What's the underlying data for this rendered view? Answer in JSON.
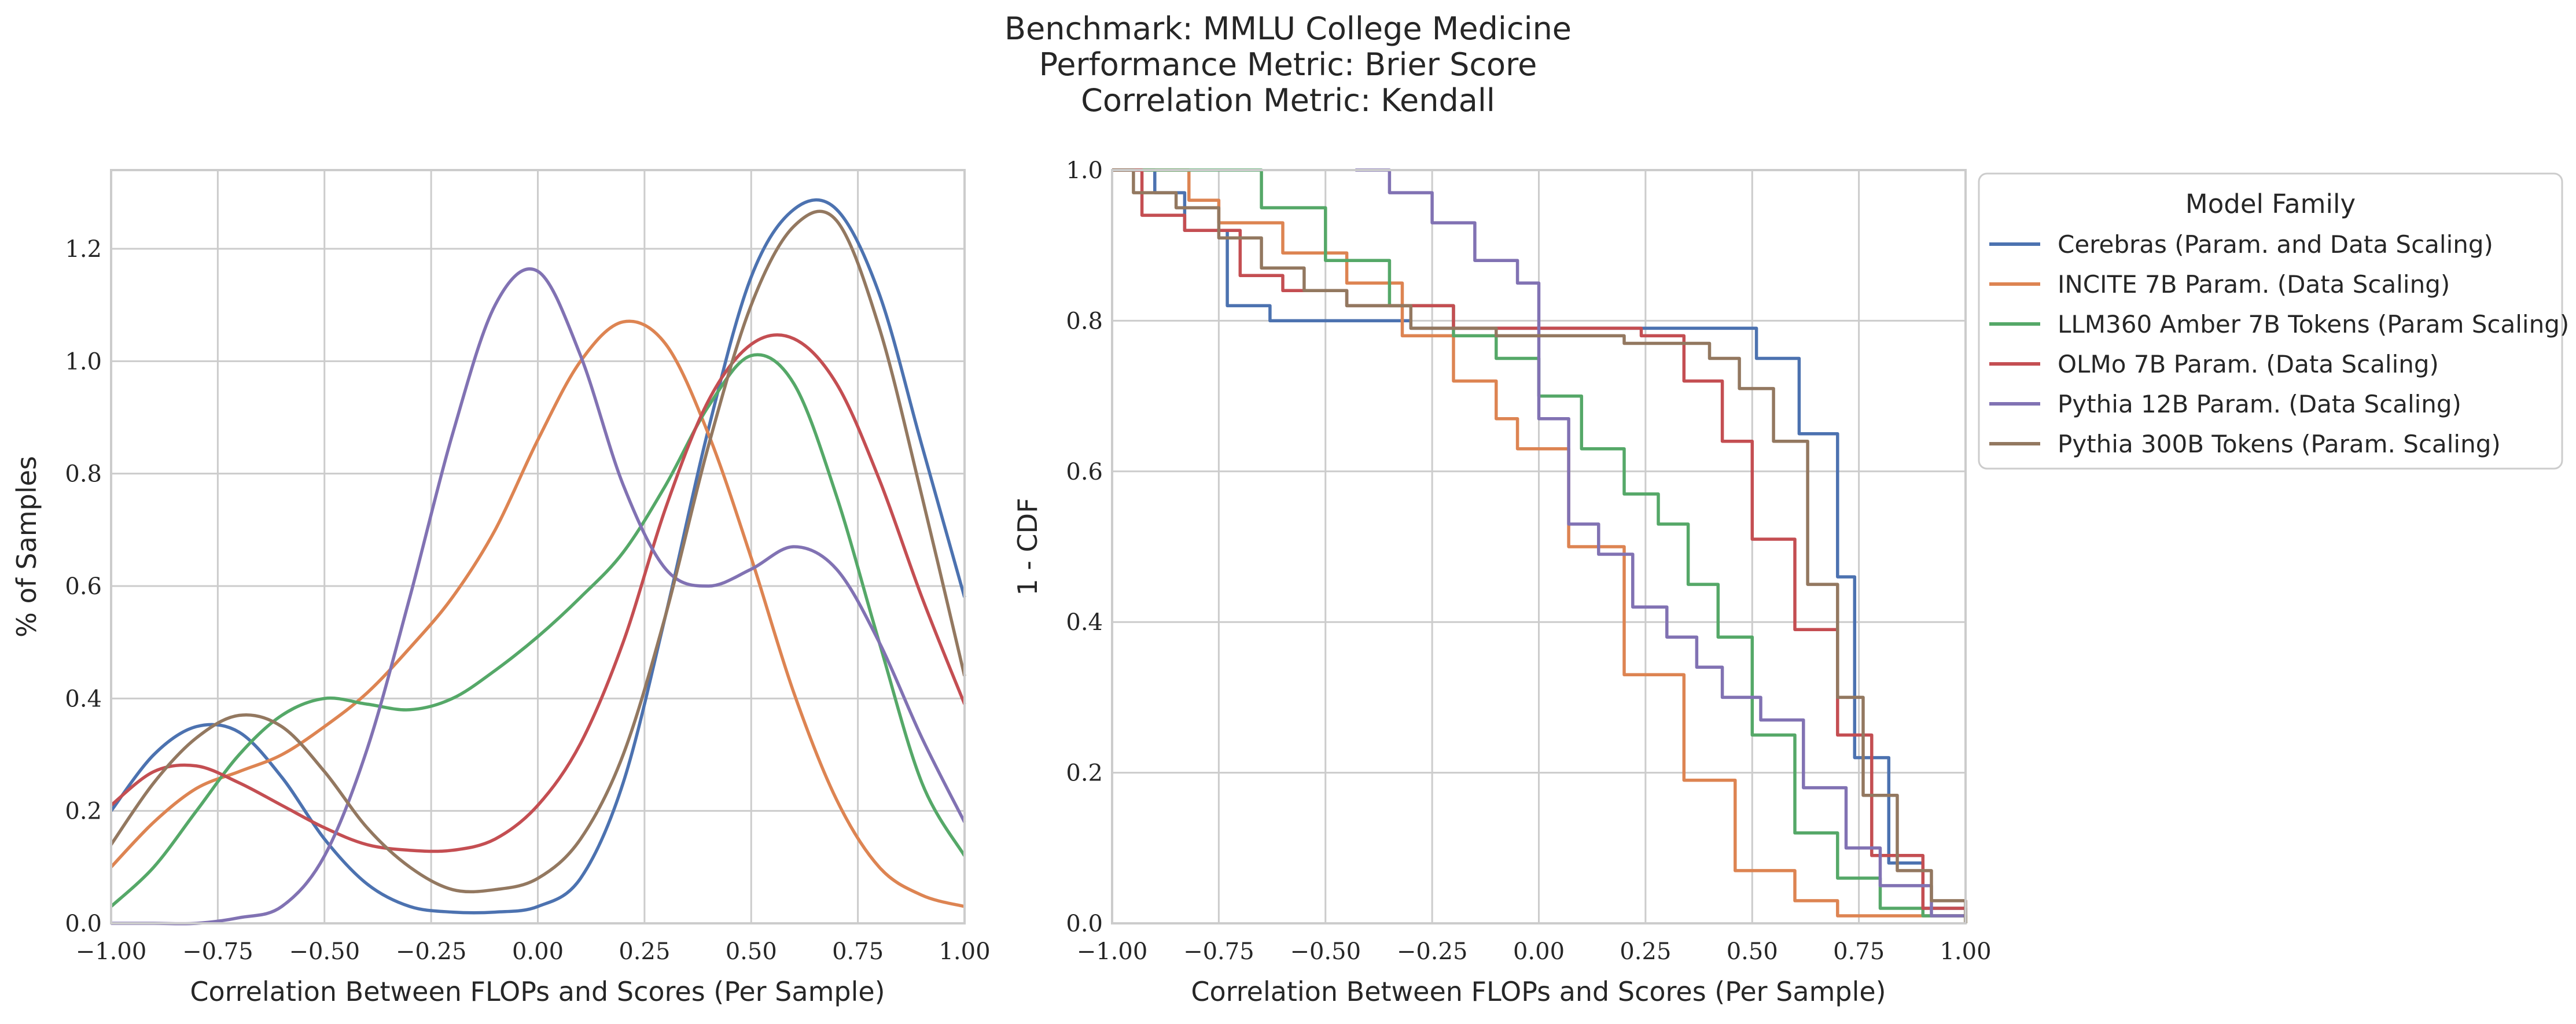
{
  "figure": {
    "title_lines": [
      "Benchmark: MMLU College Medicine",
      "Performance Metric: Brier Score",
      "Correlation Metric: Kendall"
    ]
  },
  "legend": {
    "title": "Model Family",
    "placement": "outside-right-top"
  },
  "colors": {
    "Cerebras (Param. and Data Scaling)": "#4c72b0",
    "INCITE 7B Param. (Data Scaling)": "#dd8452",
    "LLM360 Amber 7B Tokens (Param Scaling)": "#55a868",
    "OLMo 7B Param. (Data Scaling)": "#c44e52",
    "Pythia 12B Param. (Data Scaling)": "#8172b3",
    "Pythia 300B Tokens (Param. Scaling)": "#937860"
  },
  "chart_data": [
    {
      "type": "line",
      "panel": "left",
      "xlabel": "Correlation Between FLOPs and Scores (Per Sample)",
      "ylabel": "% of Samples",
      "xlim": [
        -1.0,
        1.0
      ],
      "ylim": [
        0.0,
        1.34
      ],
      "xticks": [
        -1.0,
        -0.75,
        -0.5,
        -0.25,
        0.0,
        0.25,
        0.5,
        0.75,
        1.0
      ],
      "xtick_labels": [
        "−1.00",
        "−0.75",
        "−0.50",
        "−0.25",
        "0.00",
        "0.25",
        "0.50",
        "0.75",
        "1.00"
      ],
      "yticks": [
        0.0,
        0.2,
        0.4,
        0.6,
        0.8,
        1.0,
        1.2
      ],
      "ytick_labels": [
        "0.0",
        "0.2",
        "0.4",
        "0.6",
        "0.8",
        "1.0",
        "1.2"
      ],
      "grid": true,
      "x": [
        -1.0,
        -0.9,
        -0.8,
        -0.7,
        -0.6,
        -0.5,
        -0.4,
        -0.3,
        -0.2,
        -0.1,
        0.0,
        0.1,
        0.2,
        0.3,
        0.4,
        0.5,
        0.6,
        0.7,
        0.8,
        0.9,
        1.0
      ],
      "series": [
        {
          "name": "Cerebras (Param. and Data Scaling)",
          "values": [
            0.2,
            0.3,
            0.35,
            0.34,
            0.26,
            0.15,
            0.07,
            0.03,
            0.02,
            0.02,
            0.03,
            0.08,
            0.25,
            0.55,
            0.88,
            1.15,
            1.27,
            1.27,
            1.12,
            0.85,
            0.58
          ]
        },
        {
          "name": "INCITE 7B Param. (Data Scaling)",
          "values": [
            0.1,
            0.18,
            0.24,
            0.27,
            0.3,
            0.35,
            0.41,
            0.49,
            0.58,
            0.7,
            0.86,
            1.0,
            1.07,
            1.03,
            0.87,
            0.65,
            0.41,
            0.22,
            0.1,
            0.05,
            0.03
          ]
        },
        {
          "name": "LLM360 Amber 7B Tokens (Param Scaling)",
          "values": [
            0.03,
            0.1,
            0.2,
            0.3,
            0.37,
            0.4,
            0.39,
            0.38,
            0.4,
            0.45,
            0.51,
            0.58,
            0.66,
            0.78,
            0.92,
            1.01,
            0.96,
            0.76,
            0.5,
            0.25,
            0.12
          ]
        },
        {
          "name": "OLMo 7B Param. (Data Scaling)",
          "values": [
            0.21,
            0.27,
            0.28,
            0.25,
            0.21,
            0.17,
            0.14,
            0.13,
            0.13,
            0.15,
            0.21,
            0.32,
            0.5,
            0.74,
            0.93,
            1.03,
            1.04,
            0.96,
            0.79,
            0.58,
            0.39
          ]
        },
        {
          "name": "Pythia 12B Param. (Data Scaling)",
          "values": [
            0.0,
            0.0,
            0.0,
            0.01,
            0.03,
            0.12,
            0.31,
            0.58,
            0.87,
            1.1,
            1.16,
            1.01,
            0.78,
            0.63,
            0.6,
            0.63,
            0.67,
            0.63,
            0.5,
            0.33,
            0.18
          ]
        },
        {
          "name": "Pythia 300B Tokens (Param. Scaling)",
          "values": [
            0.14,
            0.25,
            0.33,
            0.37,
            0.35,
            0.27,
            0.17,
            0.1,
            0.06,
            0.06,
            0.08,
            0.15,
            0.3,
            0.55,
            0.85,
            1.1,
            1.24,
            1.25,
            1.06,
            0.76,
            0.44
          ]
        }
      ]
    },
    {
      "type": "line",
      "panel": "right",
      "xlabel": "Correlation Between FLOPs and Scores (Per Sample)",
      "ylabel": "1 - CDF",
      "xlim": [
        -1.0,
        1.0
      ],
      "ylim": [
        0.0,
        1.0
      ],
      "xticks": [
        -1.0,
        -0.75,
        -0.5,
        -0.25,
        0.0,
        0.25,
        0.5,
        0.75,
        1.0
      ],
      "xtick_labels": [
        "−1.00",
        "−0.75",
        "−0.50",
        "−0.25",
        "0.00",
        "0.25",
        "0.50",
        "0.75",
        "1.00"
      ],
      "yticks": [
        0.0,
        0.2,
        0.4,
        0.6,
        0.8,
        1.0
      ],
      "ytick_labels": [
        "0.0",
        "0.2",
        "0.4",
        "0.6",
        "0.8",
        "1.0"
      ],
      "grid": true,
      "step": true,
      "series": [
        {
          "name": "Cerebras (Param. and Data Scaling)",
          "points": [
            [
              -1.0,
              1.0
            ],
            [
              -0.9,
              0.97
            ],
            [
              -0.83,
              0.92
            ],
            [
              -0.73,
              0.82
            ],
            [
              -0.63,
              0.8
            ],
            [
              -0.3,
              0.79
            ],
            [
              0.5,
              0.79
            ],
            [
              0.51,
              0.75
            ],
            [
              0.61,
              0.65
            ],
            [
              0.7,
              0.46
            ],
            [
              0.74,
              0.22
            ],
            [
              0.82,
              0.08
            ],
            [
              0.9,
              0.02
            ],
            [
              1.0,
              0.0
            ]
          ]
        },
        {
          "name": "INCITE 7B Param. (Data Scaling)",
          "points": [
            [
              -1.0,
              1.0
            ],
            [
              -0.82,
              0.96
            ],
            [
              -0.75,
              0.93
            ],
            [
              -0.6,
              0.89
            ],
            [
              -0.45,
              0.85
            ],
            [
              -0.32,
              0.78
            ],
            [
              -0.2,
              0.72
            ],
            [
              -0.1,
              0.67
            ],
            [
              -0.05,
              0.63
            ],
            [
              0.07,
              0.5
            ],
            [
              0.2,
              0.33
            ],
            [
              0.34,
              0.19
            ],
            [
              0.46,
              0.07
            ],
            [
              0.6,
              0.03
            ],
            [
              0.7,
              0.01
            ],
            [
              1.0,
              0.0
            ]
          ]
        },
        {
          "name": "LLM360 Amber 7B Tokens (Param Scaling)",
          "points": [
            [
              -1.0,
              1.0
            ],
            [
              -0.8,
              1.0
            ],
            [
              -0.65,
              0.95
            ],
            [
              -0.5,
              0.88
            ],
            [
              -0.35,
              0.82
            ],
            [
              -0.2,
              0.78
            ],
            [
              -0.1,
              0.75
            ],
            [
              0.0,
              0.7
            ],
            [
              0.1,
              0.63
            ],
            [
              0.2,
              0.57
            ],
            [
              0.28,
              0.53
            ],
            [
              0.35,
              0.45
            ],
            [
              0.42,
              0.38
            ],
            [
              0.5,
              0.25
            ],
            [
              0.6,
              0.12
            ],
            [
              0.7,
              0.06
            ],
            [
              0.8,
              0.02
            ],
            [
              0.9,
              0.01
            ],
            [
              1.0,
              0.0
            ]
          ]
        },
        {
          "name": "OLMo 7B Param. (Data Scaling)",
          "points": [
            [
              -1.0,
              1.0
            ],
            [
              -0.93,
              0.94
            ],
            [
              -0.83,
              0.92
            ],
            [
              -0.7,
              0.86
            ],
            [
              -0.6,
              0.84
            ],
            [
              -0.45,
              0.82
            ],
            [
              -0.2,
              0.79
            ],
            [
              0.1,
              0.79
            ],
            [
              0.24,
              0.78
            ],
            [
              0.34,
              0.72
            ],
            [
              0.43,
              0.64
            ],
            [
              0.5,
              0.51
            ],
            [
              0.6,
              0.39
            ],
            [
              0.7,
              0.25
            ],
            [
              0.78,
              0.09
            ],
            [
              0.9,
              0.02
            ],
            [
              1.0,
              0.02
            ]
          ]
        },
        {
          "name": "Pythia 12B Param. (Data Scaling)",
          "points": [
            [
              -0.43,
              1.0
            ],
            [
              -0.35,
              0.97
            ],
            [
              -0.25,
              0.93
            ],
            [
              -0.15,
              0.88
            ],
            [
              -0.05,
              0.85
            ],
            [
              0.0,
              0.67
            ],
            [
              0.07,
              0.53
            ],
            [
              0.14,
              0.49
            ],
            [
              0.22,
              0.42
            ],
            [
              0.3,
              0.38
            ],
            [
              0.37,
              0.34
            ],
            [
              0.43,
              0.3
            ],
            [
              0.52,
              0.27
            ],
            [
              0.62,
              0.18
            ],
            [
              0.72,
              0.1
            ],
            [
              0.8,
              0.05
            ],
            [
              0.92,
              0.01
            ],
            [
              1.0,
              0.01
            ]
          ]
        },
        {
          "name": "Pythia 300B Tokens (Param. Scaling)",
          "points": [
            [
              -1.0,
              1.0
            ],
            [
              -0.95,
              0.97
            ],
            [
              -0.85,
              0.95
            ],
            [
              -0.75,
              0.91
            ],
            [
              -0.65,
              0.87
            ],
            [
              -0.55,
              0.84
            ],
            [
              -0.45,
              0.82
            ],
            [
              -0.3,
              0.79
            ],
            [
              -0.1,
              0.78
            ],
            [
              0.1,
              0.78
            ],
            [
              0.2,
              0.77
            ],
            [
              0.3,
              0.77
            ],
            [
              0.4,
              0.75
            ],
            [
              0.47,
              0.71
            ],
            [
              0.55,
              0.64
            ],
            [
              0.63,
              0.45
            ],
            [
              0.7,
              0.3
            ],
            [
              0.76,
              0.17
            ],
            [
              0.84,
              0.07
            ],
            [
              0.92,
              0.03
            ],
            [
              1.0,
              0.0
            ]
          ]
        }
      ]
    }
  ]
}
